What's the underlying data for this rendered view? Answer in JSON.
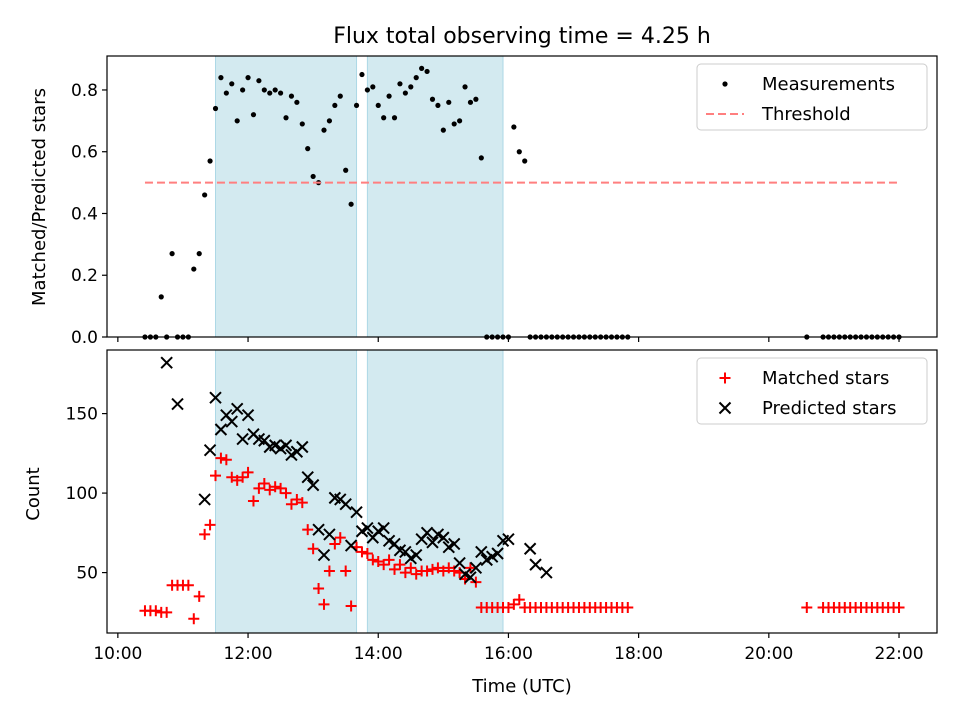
{
  "chart_data": [
    {
      "type": "scatter",
      "title": "Flux total observing time = 4.25 h",
      "xlabel": "",
      "ylabel": "Matched/Predicted stars",
      "ylim": [
        0,
        0.91
      ],
      "yticks": [
        "0.0",
        "0.2",
        "0.4",
        "0.6",
        "0.8"
      ],
      "ytick_values": [
        0,
        0.2,
        0.4,
        0.6,
        0.8
      ],
      "legend_position": "top-right",
      "series": [
        {
          "name": "Measurements",
          "marker": "dot",
          "color": "#000000",
          "x": [
            "10:25",
            "10:30",
            "10:35",
            "10:40",
            "10:45",
            "10:50",
            "10:55",
            "11:00",
            "11:05",
            "11:10",
            "11:15",
            "11:20",
            "11:25",
            "11:30",
            "11:35",
            "11:40",
            "11:45",
            "11:50",
            "11:55",
            "12:00",
            "12:05",
            "12:10",
            "12:15",
            "12:20",
            "12:25",
            "12:30",
            "12:35",
            "12:40",
            "12:45",
            "12:50",
            "12:55",
            "13:00",
            "13:05",
            "13:10",
            "13:15",
            "13:20",
            "13:25",
            "13:30",
            "13:35",
            "13:40",
            "13:45",
            "13:50",
            "13:55",
            "14:00",
            "14:05",
            "14:10",
            "14:15",
            "14:20",
            "14:25",
            "14:30",
            "14:35",
            "14:40",
            "14:45",
            "14:50",
            "14:55",
            "15:00",
            "15:05",
            "15:10",
            "15:15",
            "15:20",
            "15:25",
            "15:30",
            "15:35",
            "15:40",
            "15:45",
            "15:50",
            "15:55",
            "16:00",
            "16:05",
            "16:10",
            "16:15",
            "16:20",
            "16:25",
            "16:30",
            "16:35",
            "16:40",
            "16:45",
            "16:50",
            "16:55",
            "17:00",
            "17:05",
            "17:10",
            "17:15",
            "17:20",
            "17:25",
            "17:30",
            "17:35",
            "17:40",
            "17:45",
            "17:50",
            "20:35",
            "20:50",
            "20:55",
            "21:00",
            "21:05",
            "21:10",
            "21:15",
            "21:20",
            "21:25",
            "21:30",
            "21:35",
            "21:40",
            "21:45",
            "21:50",
            "21:55",
            "22:00"
          ],
          "y": [
            0,
            0,
            0,
            0.13,
            0,
            0.27,
            0,
            0,
            0,
            0.22,
            0.27,
            0.46,
            0.57,
            0.74,
            0.84,
            0.79,
            0.82,
            0.7,
            0.8,
            0.84,
            0.72,
            0.83,
            0.8,
            0.79,
            0.8,
            0.79,
            0.71,
            0.78,
            0.76,
            0.69,
            0.61,
            0.52,
            0.5,
            0.67,
            0.7,
            0.75,
            0.78,
            0.54,
            0.43,
            0.75,
            0.85,
            0.8,
            0.81,
            0.75,
            0.71,
            0.78,
            0.71,
            0.82,
            0.79,
            0.81,
            0.84,
            0.87,
            0.86,
            0.77,
            0.75,
            0.67,
            0.76,
            0.69,
            0.7,
            0.81,
            0.76,
            0.77,
            0.58,
            0,
            0,
            0,
            0,
            0,
            0.68,
            0.6,
            0.57,
            0,
            0,
            0,
            0,
            0,
            0,
            0,
            0,
            0,
            0,
            0,
            0,
            0,
            0,
            0,
            0,
            0,
            0,
            0,
            0,
            0,
            0,
            0,
            0,
            0,
            0,
            0,
            0,
            0,
            0,
            0,
            0,
            0,
            0,
            0
          ]
        },
        {
          "name": "Threshold",
          "marker": "dashed-line",
          "color": "#ff7f7f",
          "x": [
            "10:25",
            "22:00"
          ],
          "y": [
            0.5,
            0.5
          ]
        }
      ]
    },
    {
      "type": "scatter",
      "title": "",
      "xlabel": "Time (UTC)",
      "ylabel": "Count",
      "ylim": [
        12,
        190
      ],
      "yticks": [
        "50",
        "100",
        "150"
      ],
      "ytick_values": [
        50,
        100,
        150
      ],
      "xlim": [
        "09:50",
        "22:35"
      ],
      "xticks": [
        "10:00",
        "12:00",
        "14:00",
        "16:00",
        "18:00",
        "20:00",
        "22:00"
      ],
      "legend_position": "top-right",
      "series": [
        {
          "name": "Matched stars",
          "marker": "plus",
          "color": "#ff0000",
          "x": [
            "10:25",
            "10:30",
            "10:35",
            "10:40",
            "10:45",
            "10:50",
            "10:55",
            "11:00",
            "11:05",
            "11:10",
            "11:15",
            "11:20",
            "11:25",
            "11:30",
            "11:35",
            "11:40",
            "11:45",
            "11:50",
            "11:55",
            "12:00",
            "12:05",
            "12:10",
            "12:15",
            "12:20",
            "12:25",
            "12:30",
            "12:35",
            "12:40",
            "12:45",
            "12:50",
            "12:55",
            "13:00",
            "13:05",
            "13:10",
            "13:15",
            "13:20",
            "13:25",
            "13:30",
            "13:35",
            "13:40",
            "13:45",
            "13:50",
            "13:55",
            "14:00",
            "14:05",
            "14:10",
            "14:15",
            "14:20",
            "14:25",
            "14:30",
            "14:35",
            "14:40",
            "14:45",
            "14:50",
            "14:55",
            "15:00",
            "15:05",
            "15:10",
            "15:15",
            "15:20",
            "15:25",
            "15:30",
            "15:35",
            "15:40",
            "15:45",
            "15:50",
            "15:55",
            "16:00",
            "16:05",
            "16:10",
            "16:15",
            "16:20",
            "16:25",
            "16:30",
            "16:35",
            "16:40",
            "16:45",
            "16:50",
            "16:55",
            "17:00",
            "17:05",
            "17:10",
            "17:15",
            "17:20",
            "17:25",
            "17:30",
            "17:35",
            "17:40",
            "17:45",
            "17:50",
            "20:35",
            "20:50",
            "20:55",
            "21:00",
            "21:05",
            "21:10",
            "21:15",
            "21:20",
            "21:25",
            "21:30",
            "21:35",
            "21:40",
            "21:45",
            "21:50",
            "21:55",
            "22:00"
          ],
          "y": [
            26,
            26,
            26,
            25,
            25,
            42,
            42,
            42,
            42,
            21,
            35,
            74,
            80,
            111,
            122,
            121,
            110,
            108,
            110,
            113,
            95,
            103,
            106,
            102,
            104,
            103,
            100,
            93,
            96,
            94,
            77,
            65,
            40,
            30,
            51,
            68,
            72,
            51,
            29,
            66,
            63,
            62,
            58,
            57,
            55,
            58,
            52,
            55,
            50,
            53,
            49,
            51,
            51,
            52,
            53,
            51,
            53,
            51,
            50,
            46,
            53,
            44,
            28,
            28,
            28,
            28,
            28,
            28,
            30,
            33,
            28,
            28,
            28,
            28,
            28,
            28,
            28,
            28,
            28,
            28,
            28,
            28,
            28,
            28,
            28,
            28,
            28,
            28,
            28,
            28,
            28,
            28,
            28,
            28,
            28,
            28,
            28,
            28,
            28,
            28,
            28,
            28,
            28,
            28,
            28,
            28
          ]
        },
        {
          "name": "Predicted stars",
          "marker": "x",
          "color": "#000000",
          "x": [
            "10:45",
            "10:55",
            "11:20",
            "11:25",
            "11:30",
            "11:35",
            "11:40",
            "11:45",
            "11:50",
            "11:55",
            "12:00",
            "12:05",
            "12:10",
            "12:15",
            "12:20",
            "12:25",
            "12:30",
            "12:35",
            "12:40",
            "12:45",
            "12:50",
            "12:55",
            "13:00",
            "13:05",
            "13:10",
            "13:15",
            "13:20",
            "13:25",
            "13:30",
            "13:35",
            "13:40",
            "13:45",
            "13:50",
            "13:55",
            "14:00",
            "14:05",
            "14:10",
            "14:15",
            "14:20",
            "14:25",
            "14:30",
            "14:35",
            "14:40",
            "14:45",
            "14:50",
            "14:55",
            "15:00",
            "15:05",
            "15:10",
            "15:15",
            "15:20",
            "15:25",
            "15:30",
            "15:35",
            "15:40",
            "15:45",
            "15:50",
            "15:55",
            "16:00",
            "16:20",
            "16:25",
            "16:35"
          ],
          "y": [
            182,
            156,
            96,
            127,
            160,
            140,
            149,
            145,
            153,
            134,
            149,
            137,
            134,
            133,
            129,
            130,
            128,
            130,
            124,
            126,
            129,
            110,
            105,
            77,
            61,
            74,
            97,
            96,
            93,
            67,
            88,
            76,
            78,
            72,
            76,
            78,
            70,
            68,
            64,
            63,
            59,
            61,
            71,
            75,
            69,
            74,
            72,
            66,
            68,
            56,
            49,
            47,
            53,
            63,
            58,
            60,
            62,
            70,
            71,
            65,
            55,
            50
          ]
        }
      ]
    }
  ],
  "shaded_intervals": [
    {
      "start": "11:30",
      "end": "13:40"
    },
    {
      "start": "13:50",
      "end": "15:55"
    }
  ],
  "colors": {
    "shade": "#d3eaf0",
    "shade_edge": "#add8e6",
    "threshold": "#ff7f7f",
    "matched": "#ff0000",
    "predicted": "#000000",
    "measurement": "#000000"
  }
}
